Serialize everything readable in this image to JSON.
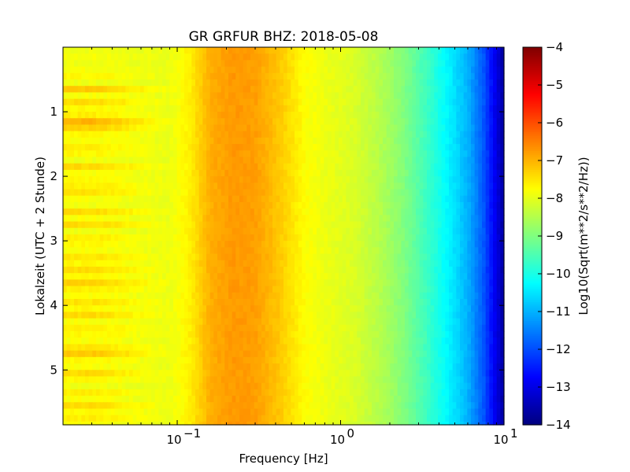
{
  "chart_data": {
    "type": "heatmap",
    "title": "GR GRFUR BHZ: 2018-05-08",
    "xlabel": "Frequency [Hz]",
    "ylabel": "Lokalzeit (UTC + 2 Stunde)",
    "x_scale": "log",
    "xlim": [
      0.02,
      10
    ],
    "ylim": [
      5.85,
      0
    ],
    "x_ticks": [
      {
        "value": 0.1,
        "base": "10",
        "exp": "−1"
      },
      {
        "value": 1,
        "base": "10",
        "exp": "0"
      },
      {
        "value": 10,
        "base": "10",
        "exp": "1"
      }
    ],
    "y_ticks": [
      {
        "value": 1,
        "label": "1"
      },
      {
        "value": 2,
        "label": "2"
      },
      {
        "value": 3,
        "label": "3"
      },
      {
        "value": 4,
        "label": "4"
      },
      {
        "value": 5,
        "label": "5"
      }
    ],
    "colormap": "jet",
    "colorbar": {
      "label": "Log10(Sqrt(m**2/s**2/Hz))",
      "range": [
        -14,
        -4
      ],
      "ticks": [
        {
          "value": -4,
          "label": "−4"
        },
        {
          "value": -5,
          "label": "−5"
        },
        {
          "value": -6,
          "label": "−6"
        },
        {
          "value": -7,
          "label": "−7"
        },
        {
          "value": -8,
          "label": "−8"
        },
        {
          "value": -9,
          "label": "−9"
        },
        {
          "value": -10,
          "label": "−10"
        },
        {
          "value": -11,
          "label": "−11"
        },
        {
          "value": -12,
          "label": "−12"
        },
        {
          "value": -13,
          "label": "−13"
        },
        {
          "value": -14,
          "label": "−14"
        }
      ]
    },
    "spectrum_profile": {
      "frequency_hz": [
        0.02,
        0.04,
        0.06,
        0.09,
        0.12,
        0.16,
        0.22,
        0.3,
        0.42,
        0.6,
        0.85,
        1.2,
        1.7,
        2.4,
        3.3,
        4.5,
        6.0,
        7.5,
        8.8,
        10.0
      ],
      "log10_amplitude": [
        -7.9,
        -7.9,
        -7.95,
        -7.95,
        -7.6,
        -6.95,
        -6.75,
        -6.8,
        -7.2,
        -7.75,
        -7.95,
        -8.1,
        -8.45,
        -8.95,
        -9.6,
        -10.3,
        -11.0,
        -11.9,
        -12.9,
        -13.7
      ]
    },
    "time_hours": [
      0.0,
      0.1,
      0.2,
      0.3,
      0.4,
      0.5,
      0.6,
      0.7,
      0.8,
      0.9,
      1.0,
      1.1,
      1.2,
      1.3,
      1.4,
      1.5,
      1.6,
      1.7,
      1.8,
      1.9,
      2.0,
      2.1,
      2.2,
      2.3,
      2.4,
      2.5,
      2.6,
      2.7,
      2.8,
      2.9,
      3.0,
      3.1,
      3.2,
      3.3,
      3.4,
      3.5,
      3.6,
      3.7,
      3.8,
      3.9,
      4.0,
      4.1,
      4.2,
      4.3,
      4.4,
      4.5,
      4.6,
      4.7,
      4.8,
      4.9,
      5.0,
      5.1,
      5.2,
      5.3,
      5.4,
      5.5,
      5.6,
      5.7,
      5.8
    ],
    "low_frequency_offset": [
      0.0,
      0.1,
      0.0,
      0.1,
      0.2,
      0.0,
      0.7,
      0.1,
      0.5,
      0.2,
      0.3,
      0.9,
      0.6,
      0.2,
      0.1,
      0.3,
      0.2,
      0.0,
      0.5,
      0.1,
      0.2,
      0.3,
      0.4,
      0.1,
      0.0,
      0.5,
      0.1,
      0.5,
      0.0,
      0.3,
      0.2,
      0.1,
      0.4,
      0.2,
      0.5,
      0.2,
      0.6,
      0.3,
      0.1,
      0.4,
      0.2,
      0.5,
      0.1,
      0.3,
      0.2,
      0.1,
      0.4,
      0.7,
      0.2,
      0.1,
      0.5,
      0.2,
      0.0,
      0.3,
      0.1,
      0.5,
      0.2,
      0.3,
      0.1
    ]
  }
}
